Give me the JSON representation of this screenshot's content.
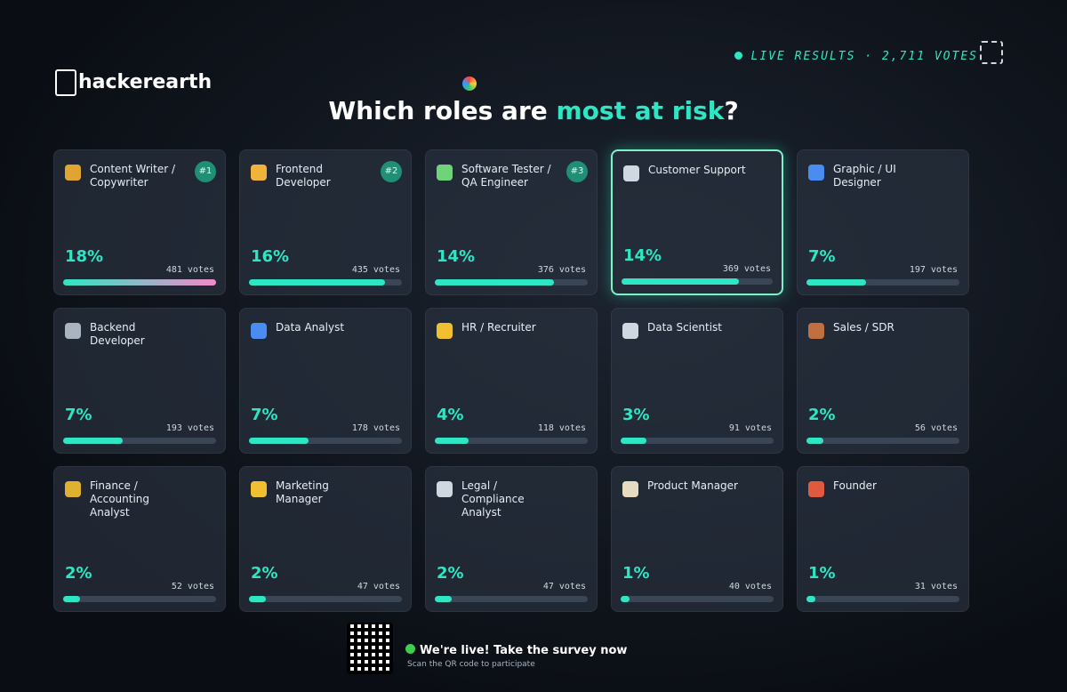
{
  "header": {
    "logo": "hackerearth",
    "title_start": "Which roles are ",
    "title_highlight": "most at risk",
    "title_end": "?",
    "live": "LIVE RESULTS · 2,711 VOTES"
  },
  "cards": [
    {
      "rank": "#1",
      "role": "Content Writer / Copywriter",
      "percent": 18,
      "percent_label": "18%",
      "votes": "481 votes"
    },
    {
      "rank": "#2",
      "role": "Frontend Developer",
      "percent": 16,
      "percent_label": "16%",
      "votes": "435 votes"
    },
    {
      "rank": "#3",
      "role": "Software Tester / QA Engineer",
      "percent": 14,
      "percent_label": "14%",
      "votes": "376 votes"
    },
    {
      "role": "Customer Support",
      "percent": 14,
      "percent_label": "14%",
      "votes": "369 votes"
    },
    {
      "role": "Graphic / UI Designer",
      "percent": 7,
      "percent_label": "7%",
      "votes": "197 votes"
    },
    {
      "role": "Backend Developer",
      "percent": 7,
      "percent_label": "7%",
      "votes": "193 votes"
    },
    {
      "role": "Data Analyst",
      "percent": 7,
      "percent_label": "7%",
      "votes": "178 votes"
    },
    {
      "role": "HR / Recruiter",
      "percent": 4,
      "percent_label": "4%",
      "votes": "118 votes"
    },
    {
      "role": "Data Scientist",
      "percent": 3,
      "percent_label": "3%",
      "votes": "91 votes"
    },
    {
      "role": "Sales / SDR",
      "percent": 2,
      "percent_label": "2%",
      "votes": "56 votes"
    },
    {
      "role": "Finance / Accounting Analyst",
      "percent": 2,
      "percent_label": "2%",
      "votes": "52 votes"
    },
    {
      "role": "Marketing Manager",
      "percent": 2,
      "percent_label": "2%",
      "votes": "47 votes"
    },
    {
      "role": "Legal / Compliance Analyst",
      "percent": 2,
      "percent_label": "2%",
      "votes": "47 votes"
    },
    {
      "role": "Product Manager",
      "percent": 1,
      "percent_label": "1%",
      "votes": "40 votes"
    },
    {
      "role": "Founder",
      "percent": 1,
      "percent_label": "1%",
      "votes": "31 votes"
    }
  ],
  "footer": {
    "cta": "We're live! Take the survey now",
    "sub": "Scan the QR code to participate"
  }
}
